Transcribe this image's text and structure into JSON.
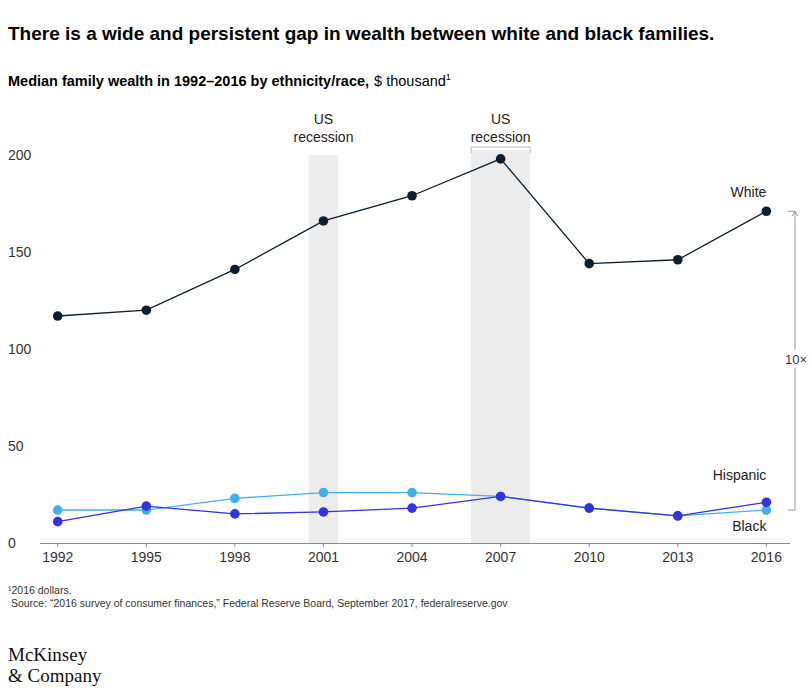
{
  "chart_data": {
    "type": "line",
    "title": "There is a wide and persistent gap in wealth between white and black families.",
    "subtitle": "Median family wealth in 1992–2016 by ethnicity/race,",
    "unit_label": "$ thousand",
    "unit_footnote_mark": "1",
    "x": [
      1992,
      1995,
      1998,
      2001,
      2004,
      2007,
      2010,
      2013,
      2016
    ],
    "xlim": [
      1991.4,
      2016.8
    ],
    "xticks": [
      1992,
      1995,
      1998,
      2001,
      2004,
      2007,
      2010,
      2013,
      2016
    ],
    "ylim": [
      0,
      200
    ],
    "yticks": [
      0,
      50,
      100,
      150,
      200
    ],
    "grid": false,
    "marker": "circle",
    "series": [
      {
        "name": "White",
        "color": "#0b1f2f",
        "values": [
          117,
          120,
          141,
          166,
          179,
          198,
          144,
          146,
          171
        ]
      },
      {
        "name": "Hispanic",
        "color": "#3fb0ea",
        "values": [
          17,
          17,
          23,
          26,
          26,
          24,
          18,
          14,
          17
        ]
      },
      {
        "name": "Black",
        "color": "#3333e0",
        "values": [
          11,
          19,
          15,
          16,
          18,
          24,
          18,
          14,
          21
        ]
      }
    ],
    "recessions": [
      {
        "label": "US recession",
        "start": 2000.5,
        "end": 2001.5
      },
      {
        "label": "US recession",
        "start": 2006.0,
        "end": 2008.0
      }
    ],
    "gap_annotation": "10×",
    "footnotes": [
      "¹2016 dollars.",
      "Source: “2016 survey of consumer finances,” Federal Reserve Board, September 2017, federalreserve.gov"
    ],
    "logo": [
      "McKinsey",
      "& Company"
    ]
  }
}
